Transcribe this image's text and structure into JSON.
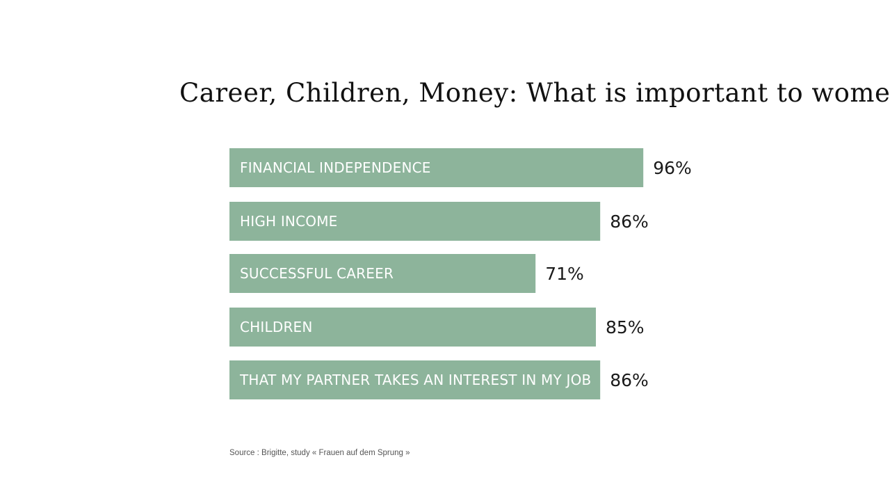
{
  "chart_data": {
    "type": "bar",
    "orientation": "horizontal",
    "title": "Career, Children, Money: What is important to women.",
    "categories": [
      "FINANCIAL INDEPENDENCE",
      "HIGH INCOME",
      "SUCCESSFUL CAREER",
      "CHILDREN",
      "THAT MY PARTNER TAKES AN INTEREST IN MY JOB"
    ],
    "values": [
      96,
      86,
      71,
      85,
      86
    ],
    "value_labels": [
      "96%",
      "86%",
      "71%",
      "85%",
      "86%"
    ],
    "unit": "%",
    "xlim": [
      0,
      100
    ],
    "grid": false,
    "legend": "none",
    "bar_color": "#8db49b",
    "source": "Source : Brigitte, study  « Frauen auf dem Sprung »"
  }
}
